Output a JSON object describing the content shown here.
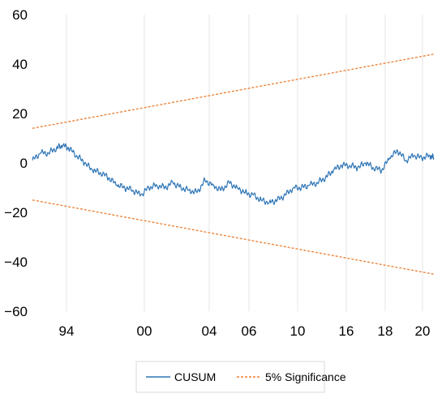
{
  "chart_data": {
    "type": "line",
    "title": "",
    "xlabel": "",
    "ylabel": "",
    "ylim": [
      -60,
      60
    ],
    "y_ticks": [
      "60",
      "40",
      "20",
      "0",
      "−20",
      "−40",
      "−60"
    ],
    "y_tick_values": [
      60,
      40,
      20,
      0,
      -20,
      -40,
      -60
    ],
    "x_tick_labels": [
      "94",
      "00",
      "04",
      "06",
      "10",
      "16",
      "18",
      "20"
    ],
    "grid": "vertical",
    "legend_position": "bottom",
    "colors": {
      "cusum": "#2e75b6",
      "significance": "#ed7d31",
      "grid": "#e6e6e6",
      "legend_border": "#d9d9d9"
    },
    "series": [
      {
        "name": "CUSUM",
        "style": "solid",
        "x": [
          0,
          0.02,
          0.04,
          0.06,
          0.075,
          0.09,
          0.11,
          0.13,
          0.15,
          0.17,
          0.19,
          0.21,
          0.23,
          0.25,
          0.27,
          0.29,
          0.31,
          0.33,
          0.35,
          0.37,
          0.39,
          0.41,
          0.43,
          0.45,
          0.47,
          0.49,
          0.51,
          0.53,
          0.55,
          0.57,
          0.59,
          0.61,
          0.63,
          0.65,
          0.67,
          0.69,
          0.71,
          0.73,
          0.75,
          0.77,
          0.79,
          0.81,
          0.83,
          0.85,
          0.87,
          0.89,
          0.91,
          0.93,
          0.95,
          0.97,
          0.99,
          1.0
        ],
        "values": [
          1,
          4,
          4,
          6,
          7,
          6,
          3,
          0,
          -3,
          -4,
          -6,
          -9,
          -10,
          -11,
          -13,
          -10,
          -9,
          -10,
          -8,
          -10,
          -11,
          -12,
          -7,
          -9,
          -11,
          -8,
          -10,
          -12,
          -13,
          -15,
          -16,
          -15,
          -13,
          -10,
          -10,
          -9,
          -8,
          -6,
          -3,
          -1,
          -1,
          -2,
          0,
          -2,
          -3,
          2,
          5,
          1,
          3,
          2,
          3,
          2
        ],
        "x_domain": [
          0,
          1
        ]
      },
      {
        "name": "5% Significance",
        "style": "dashed",
        "upper": [
          14,
          44
        ],
        "lower": [
          -15,
          -45
        ],
        "x_domain": [
          0,
          1
        ]
      }
    ]
  }
}
